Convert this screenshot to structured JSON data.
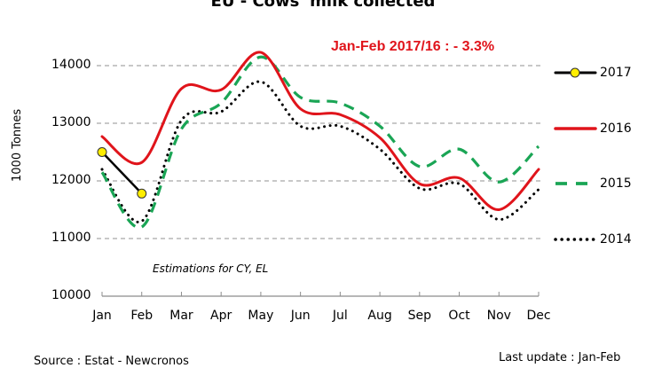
{
  "chart_data": {
    "type": "line",
    "title": "EU - Cows' milk collected",
    "annotation": "Jan-Feb 2017/16 :  - 3.3%",
    "note": "Estimations for CY, EL",
    "xlabel": "",
    "ylabel": "1000 Tonnes",
    "ylim": [
      10000,
      14000
    ],
    "yticks": [
      "14000",
      "13000",
      "12000",
      "11000",
      "10000"
    ],
    "grid": true,
    "legend_position": "right",
    "categories": [
      "Jan",
      "Feb",
      "Mar",
      "Apr",
      "May",
      "Jun",
      "Jul",
      "Aug",
      "Sep",
      "Oct",
      "Nov",
      "Dec"
    ],
    "series": [
      {
        "name": "2017",
        "color": "#000000",
        "style": "solid-markers",
        "marker_color": "#ffee00",
        "values": [
          12500,
          11780
        ]
      },
      {
        "name": "2016",
        "color": "#e0141b",
        "style": "solid",
        "values": [
          12770,
          12320,
          13600,
          13580,
          14230,
          13250,
          13150,
          12750,
          11950,
          12050,
          11500,
          12200
        ]
      },
      {
        "name": "2015",
        "color": "#1aa555",
        "style": "dashed",
        "values": [
          12150,
          11200,
          12900,
          13350,
          14150,
          13450,
          13350,
          12950,
          12250,
          12550,
          11980,
          12600
        ]
      },
      {
        "name": "2014",
        "color": "#000000",
        "style": "dotted",
        "values": [
          12200,
          11300,
          13050,
          13200,
          13720,
          12950,
          12950,
          12550,
          11870,
          11950,
          11330,
          11850
        ]
      }
    ],
    "source": "Source : Estat - Newcronos",
    "last_update": "Last update : Jan-Feb"
  }
}
